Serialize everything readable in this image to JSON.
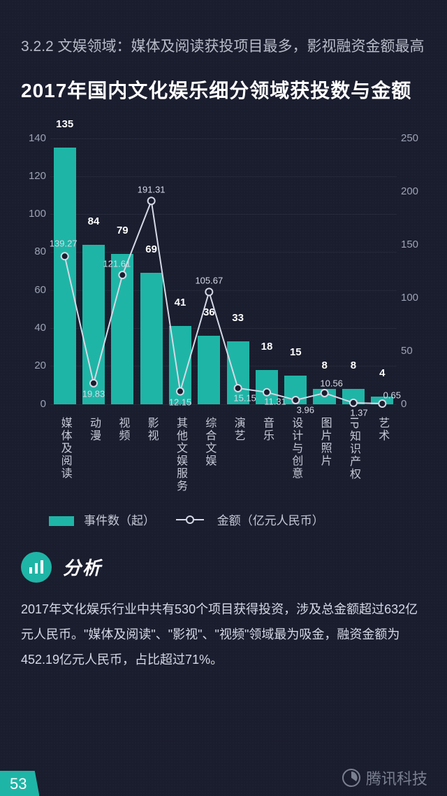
{
  "subtitle": "3.2.2 文娱领域：媒体及阅读获投项目最多，影视融资金额最高",
  "title": "2017年国内文化娱乐细分领域获投数与金额",
  "chart": {
    "type": "bar+line",
    "categories": [
      "媒体及阅读",
      "动漫",
      "视频",
      "影视",
      "其他文娱服务",
      "综合文娱",
      "演艺",
      "音乐",
      "设计与创意",
      "图片照片",
      "IP知识产权",
      "艺术"
    ],
    "bar_values": [
      135,
      84,
      79,
      69,
      41,
      36,
      33,
      18,
      15,
      8,
      8,
      4
    ],
    "line_values": [
      139.27,
      19.83,
      121.61,
      191.31,
      12.15,
      105.67,
      15.15,
      11.31,
      3.96,
      10.56,
      1.37,
      0.65
    ],
    "left_axis": {
      "min": 0,
      "max": 140,
      "step": 20
    },
    "right_axis": {
      "min": 0,
      "max": 250,
      "step": 50
    },
    "bar_color": "#1fb5a6",
    "line_color": "#d5d9e6",
    "marker_fill": "#1a1d2e",
    "bar_label_color": "#ffffff",
    "line_label_color": "#d5d9e6",
    "grid_color": "rgba(255,255,255,0.05)",
    "background_color": "#1a1d2e"
  },
  "legend": {
    "bar": "事件数（起）",
    "line": "金额（亿元人民币）"
  },
  "analysis": {
    "heading": "分析",
    "text": "2017年文化娱乐行业中共有530个项目获得投资，涉及总金额超过632亿元人民币。\"媒体及阅读\"、\"影视\"、\"视频\"领域最为吸金，融资金额为452.19亿元人民币，占比超过71%。"
  },
  "brand": "腾讯科技",
  "page": "53"
}
